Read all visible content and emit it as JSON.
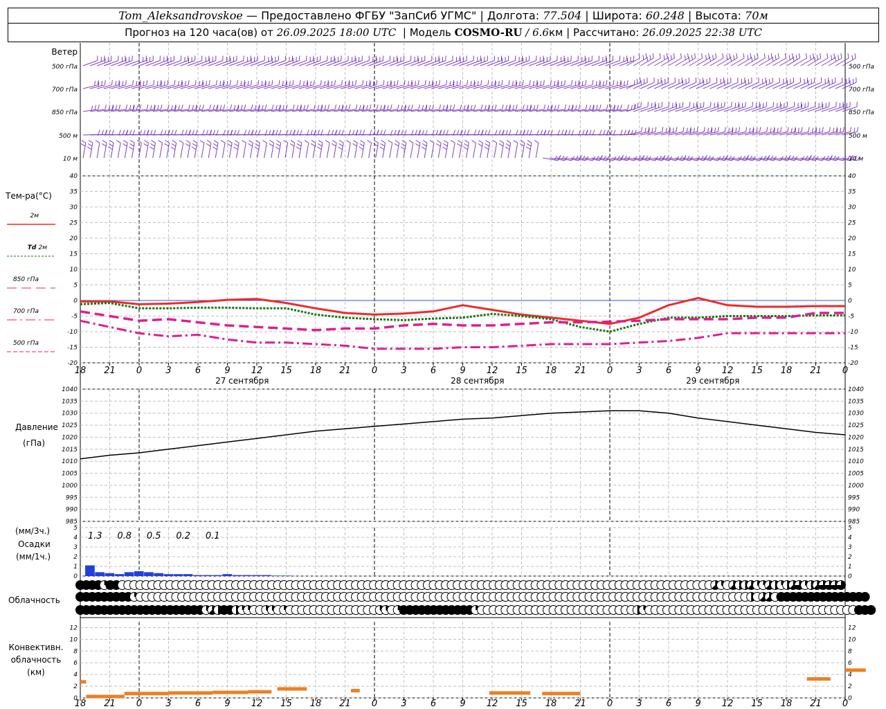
{
  "header": {
    "station": "Tom_Aleksandrovskoe",
    "provided": "— Предоставлено ФГБУ \"ЗапСиб УГМС\"",
    "lon_label": "Долгота:",
    "lon": "77.504",
    "lat_label": "Широта:",
    "lat": "60.248",
    "alt_label": "Высота:",
    "alt": "70м",
    "forecast_prefix": "Прогноз на 120 часа(ов) от",
    "forecast_date": "26.09.2025 18:00 UTC",
    "model_label": "Модель",
    "model": "COSMO-RU",
    "model_res": "/ 6.6",
    "model_res_unit": "км",
    "calc_label": "Рассчитано:",
    "calc_date": "26.09.2025 22:38 UTC"
  },
  "chart_data": {
    "type": "meteogram",
    "x_hours_utc": [
      18,
      21,
      0,
      3,
      6,
      9,
      12,
      15,
      18,
      21,
      0,
      3,
      6,
      9,
      12,
      15,
      18,
      21,
      0,
      3,
      6,
      9,
      12,
      15,
      18,
      21,
      0
    ],
    "days": [
      "27 сентября",
      "28 сентября",
      "29 сентября"
    ],
    "wind": {
      "title": "Ветер",
      "levels": [
        "500 гПа",
        "700 гПа",
        "850 гПа",
        "500 м",
        "10 м"
      ],
      "barb_color": "#7f3fbf"
    },
    "temperature": {
      "title": "Тем-ра(°С)",
      "ylim": [
        -20,
        40
      ],
      "yticks": [
        -20,
        -15,
        -10,
        -5,
        0,
        5,
        10,
        15,
        20,
        25,
        30,
        35,
        40
      ],
      "series": [
        {
          "name": "2м",
          "color": "#ee2a2a",
          "style": "solid",
          "values": [
            -0.3,
            -0.3,
            -1.2,
            -1.0,
            -0.5,
            0.2,
            0.5,
            -0.8,
            -2.5,
            -4.0,
            -4.5,
            -4.2,
            -3.5,
            -1.5,
            -3.0,
            -4.5,
            -5.5,
            -6.5,
            -7.5,
            -5.5,
            -1.5,
            0.8,
            -1.5,
            -2.0,
            -2.0,
            -1.8,
            -1.8
          ]
        },
        {
          "name": "Td 2м",
          "name_prefix": "Td",
          "name_suffix": "2м",
          "color": "#117711",
          "style": "dotted",
          "values": [
            -1.2,
            -0.8,
            -2.5,
            -2.5,
            -2.3,
            -2.3,
            -2.5,
            -2.5,
            -4.5,
            -5.5,
            -6.0,
            -6.3,
            -5.8,
            -5.5,
            -4.3,
            -5.0,
            -6.0,
            -8.5,
            -10.0,
            -7.5,
            -5.5,
            -5.5,
            -5.0,
            -5.0,
            -5.0,
            -4.8,
            -4.8
          ]
        },
        {
          "name": "850 гПа",
          "color": "#dd1f8f",
          "style": "dash",
          "values": [
            -3.5,
            -5.0,
            -6.5,
            -6.0,
            -7.0,
            -8.0,
            -8.5,
            -9.0,
            -9.5,
            -9.0,
            -9.0,
            -8.0,
            -7.5,
            -8.0,
            -8.0,
            -7.5,
            -7.0,
            -7.0,
            -6.8,
            -6.5,
            -6.0,
            -6.0,
            -6.0,
            -5.5,
            -5.5,
            -4.0,
            -4.0
          ]
        },
        {
          "name": "700 гПа",
          "color": "#dd1f8f",
          "style": "dashdot",
          "values": [
            -6.5,
            -8.5,
            -10.5,
            -11.5,
            -11.0,
            -12.5,
            -13.5,
            -13.5,
            -14.0,
            -14.5,
            -15.5,
            -15.5,
            -15.5,
            -15.0,
            -15.0,
            -14.5,
            -14.0,
            -14.0,
            -14.0,
            -13.5,
            -13.0,
            -12.0,
            -10.5,
            -10.5,
            -10.5,
            -10.5,
            -10.5
          ]
        },
        {
          "name": "500 гПа",
          "color": "#dd1f8f",
          "style": "dashed-thin",
          "values": []
        }
      ]
    },
    "pressure": {
      "title": "Давление",
      "unit": "(гПа)",
      "ylim": [
        985,
        1040
      ],
      "yticks": [
        985,
        990,
        995,
        1000,
        1005,
        1010,
        1015,
        1020,
        1025,
        1030,
        1035,
        1040
      ],
      "values": [
        1011.0,
        1012.5,
        1013.5,
        1015.0,
        1016.5,
        1018.0,
        1019.5,
        1021.0,
        1022.5,
        1023.5,
        1024.5,
        1025.5,
        1026.5,
        1027.5,
        1028.0,
        1029.0,
        1030.0,
        1030.5,
        1031.0,
        1031.0,
        1030.0,
        1028.0,
        1026.5,
        1025.0,
        1023.5,
        1022.0,
        1021.0
      ]
    },
    "precipitation": {
      "title": "Осадки",
      "unit_3h": "(мм/3ч.)",
      "unit_1h": "(мм/1ч.)",
      "ylim": [
        0,
        5
      ],
      "yticks": [
        0,
        1,
        2,
        3,
        4,
        5
      ],
      "sums_3h": [
        "1.3",
        "0.8",
        "0.5",
        "0.2",
        "0.1"
      ],
      "hourly": [
        1.1,
        0.4,
        0.3,
        0.2,
        0.4,
        0.5,
        0.4,
        0.3,
        0.2,
        0.2,
        0.2,
        0.1,
        0.1,
        0.1,
        0.2,
        0.1,
        0.1,
        0.1,
        0.1,
        0.05,
        0.05
      ],
      "color": "#1f3fdf"
    },
    "cloudiness": {
      "title": "Облачность",
      "rows": [
        [
          8,
          8,
          8,
          8,
          2,
          8,
          8,
          0,
          0,
          0,
          0,
          0,
          0,
          0,
          0,
          0,
          0,
          0,
          0,
          0,
          0,
          0,
          0,
          0,
          0,
          0,
          0,
          0,
          0,
          0,
          0,
          0,
          0,
          0,
          0,
          0,
          0,
          0,
          0,
          0,
          0,
          0,
          0,
          0,
          0,
          0,
          0,
          0,
          0,
          0,
          0,
          0,
          0,
          0,
          0,
          0,
          0,
          0,
          0,
          0,
          0,
          0,
          0,
          0,
          0,
          0,
          0,
          0,
          0,
          0,
          0,
          0,
          0,
          0,
          0,
          0,
          0,
          0,
          0,
          0,
          0,
          0,
          0,
          0,
          0,
          0,
          0,
          0,
          0,
          0,
          0,
          0,
          0,
          0,
          0,
          0,
          0,
          0,
          0,
          0,
          0,
          0,
          0,
          0,
          0,
          0,
          5,
          3,
          0,
          5,
          4,
          4,
          5,
          3,
          2,
          5,
          4,
          2,
          4,
          5,
          6,
          3,
          4,
          5,
          6,
          6,
          6,
          6
        ],
        [
          8,
          8,
          8,
          8,
          8,
          8,
          8,
          8,
          8,
          2,
          0,
          0,
          0,
          0,
          0,
          0,
          0,
          0,
          0,
          0,
          0,
          0,
          0,
          0,
          0,
          0,
          0,
          0,
          0,
          0,
          0,
          0,
          0,
          0,
          0,
          0,
          0,
          0,
          0,
          0,
          0,
          0,
          0,
          0,
          0,
          0,
          0,
          0,
          0,
          0,
          0,
          0,
          0,
          0,
          0,
          0,
          0,
          0,
          0,
          0,
          0,
          0,
          0,
          0,
          0,
          0,
          0,
          0,
          0,
          0,
          0,
          0,
          0,
          0,
          0,
          0,
          0,
          0,
          0,
          0,
          0,
          0,
          0,
          0,
          0,
          0,
          0,
          0,
          0,
          0,
          0,
          0,
          0,
          0,
          0,
          0,
          0,
          0,
          0,
          0,
          0,
          0,
          0,
          0,
          0,
          0,
          0,
          0,
          0,
          0,
          0,
          0,
          4,
          0,
          5,
          5,
          0,
          8,
          8,
          8,
          8,
          8,
          8,
          8,
          8,
          8,
          8,
          8,
          8,
          8,
          8,
          8
        ],
        [
          8,
          8,
          8,
          8,
          8,
          8,
          8,
          8,
          8,
          8,
          8,
          8,
          8,
          8,
          8,
          8,
          8,
          8,
          8,
          8,
          8,
          3,
          5,
          4,
          8,
          8,
          4,
          2,
          2,
          0,
          0,
          3,
          3,
          0,
          2,
          0,
          0,
          0,
          0,
          0,
          0,
          0,
          0,
          0,
          0,
          0,
          0,
          0,
          0,
          0,
          3,
          3,
          0,
          2,
          8,
          8,
          8,
          8,
          8,
          8,
          8,
          8,
          8,
          8,
          8,
          8,
          2,
          0,
          0,
          0,
          0,
          0,
          0,
          0,
          0,
          0,
          0,
          0,
          0,
          0,
          0,
          0,
          0,
          0,
          0,
          0,
          0,
          0,
          0,
          0,
          0,
          0,
          0,
          4,
          2,
          0,
          0,
          0,
          0,
          0,
          0,
          0,
          0,
          0,
          0,
          0,
          0,
          0,
          0,
          0,
          0,
          0,
          0,
          0,
          0,
          0,
          0,
          0,
          0,
          0,
          0,
          0,
          0,
          0,
          0,
          0,
          0,
          0,
          0,
          0,
          8,
          8,
          8
        ]
      ]
    },
    "convective": {
      "title": "Конвективн. облачность (км)",
      "ylim": [
        0,
        13
      ],
      "yticks": [
        0,
        2,
        4,
        6,
        8,
        10,
        12
      ],
      "color": "#ee7f22",
      "segments": [
        {
          "x0": 0,
          "x1": 0.2,
          "top": 2.8
        },
        {
          "x0": 0.2,
          "x1": 1.5,
          "top": 0.3
        },
        {
          "x0": 1.5,
          "x1": 3.0,
          "top": 0.8
        },
        {
          "x0": 3.0,
          "x1": 4.5,
          "top": 0.9
        },
        {
          "x0": 4.5,
          "x1": 5.7,
          "top": 1.0
        },
        {
          "x0": 5.7,
          "x1": 6.5,
          "top": 1.1
        },
        {
          "x0": 6.7,
          "x1": 7.7,
          "top": 1.6
        },
        {
          "x0": 9.2,
          "x1": 9.5,
          "top": 1.3
        },
        {
          "x0": 13.9,
          "x1": 15.3,
          "top": 0.9
        },
        {
          "x0": 15.7,
          "x1": 17.0,
          "top": 0.8
        },
        {
          "x0": 24.7,
          "x1": 25.5,
          "top": 3.3
        },
        {
          "x0": 26.0,
          "x1": 26.7,
          "top": 4.8
        }
      ]
    }
  }
}
